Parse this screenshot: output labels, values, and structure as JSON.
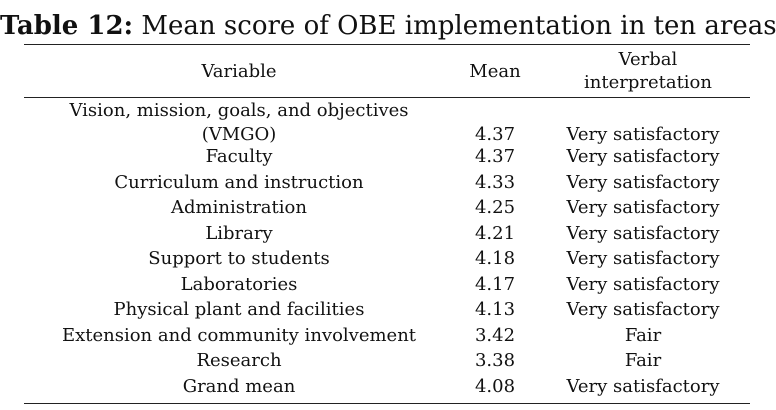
{
  "caption": {
    "label": "Table 12:",
    "text": "Mean score of OBE implementation in ten areas"
  },
  "columns": {
    "variable": "Variable",
    "mean": "Mean",
    "interpretation_line1": "Verbal",
    "interpretation_line2": "interpretation"
  },
  "rows": [
    {
      "variable_line1": "Vision, mission, goals, and objectives",
      "variable_line2": "(VMGO)",
      "mean": "4.37",
      "interpretation": "Very satisfactory"
    },
    {
      "variable": "Faculty",
      "mean": "4.37",
      "interpretation": "Very satisfactory"
    },
    {
      "variable": "Curriculum and instruction",
      "mean": "4.33",
      "interpretation": "Very satisfactory"
    },
    {
      "variable": "Administration",
      "mean": "4.25",
      "interpretation": "Very satisfactory"
    },
    {
      "variable": "Library",
      "mean": "4.21",
      "interpretation": "Very satisfactory"
    },
    {
      "variable": "Support to students",
      "mean": "4.18",
      "interpretation": "Very satisfactory"
    },
    {
      "variable": "Laboratories",
      "mean": "4.17",
      "interpretation": "Very satisfactory"
    },
    {
      "variable": "Physical plant and facilities",
      "mean": "4.13",
      "interpretation": "Very satisfactory"
    },
    {
      "variable": "Extension and community involvement",
      "mean": "3.42",
      "interpretation": "Fair"
    },
    {
      "variable": "Research",
      "mean": "3.38",
      "interpretation": "Fair"
    },
    {
      "variable": "Grand mean",
      "mean": "4.08",
      "interpretation": "Very satisfactory"
    }
  ]
}
